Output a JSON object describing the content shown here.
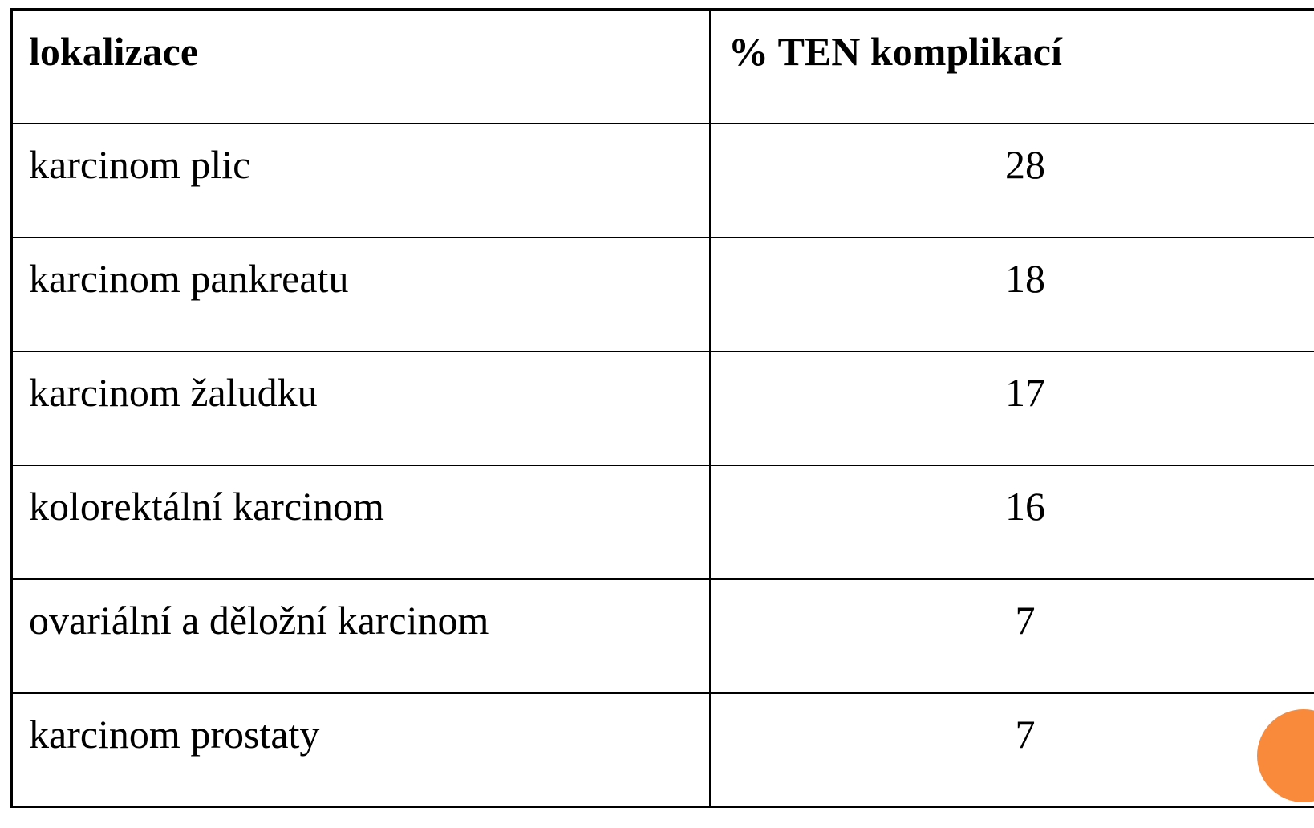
{
  "table": {
    "header": [
      "lokalizace",
      "% TEN komplikací"
    ],
    "rows": [
      [
        "karcinom plic",
        28
      ],
      [
        "karcinom pankreatu",
        18
      ],
      [
        "karcinom žaludku",
        17
      ],
      [
        "kolorektální karcinom",
        16
      ],
      [
        "ovariální a děložní karcinom",
        7
      ],
      [
        "karcinom prostaty",
        7
      ]
    ]
  }
}
